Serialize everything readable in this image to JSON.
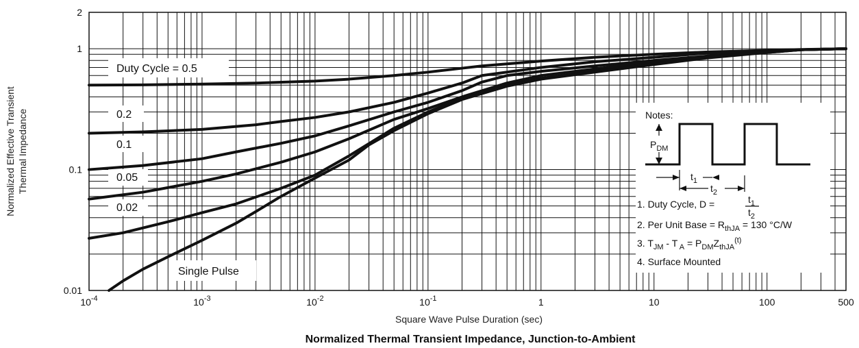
{
  "chart_data": {
    "type": "line",
    "title": "Normalized Thermal Transient Impedance, Junction-to-Ambient",
    "xlabel": "Square Wave Pulse Duration (sec)",
    "ylabel_line1": "Normalized Effective Transient",
    "ylabel_line2": "Thermal Impedance",
    "x_scale": "log",
    "y_scale": "log",
    "xlim": [
      0.0001,
      500
    ],
    "ylim": [
      0.01,
      2
    ],
    "grid": true,
    "x_tick_values": [
      0.0001,
      0.001,
      0.01,
      0.1,
      1,
      10,
      100,
      500
    ],
    "x_tick_labels": [
      {
        "base": "10",
        "exp": "-4"
      },
      {
        "base": "10",
        "exp": "-3"
      },
      {
        "base": "10",
        "exp": "-2"
      },
      {
        "base": "10",
        "exp": "-1"
      },
      {
        "base": "1",
        "exp": ""
      },
      {
        "base": "10",
        "exp": ""
      },
      {
        "base": "100",
        "exp": ""
      },
      {
        "base": "500",
        "exp": ""
      }
    ],
    "y_tick_values": [
      0.01,
      0.1,
      1,
      2
    ],
    "y_tick_labels": [
      "0.01",
      "0.1",
      "1",
      "2"
    ],
    "series": [
      {
        "name": "Duty Cycle = 0.5",
        "x": [
          0.0001,
          0.0003,
          0.001,
          0.003,
          0.01,
          0.02,
          0.05,
          0.1,
          0.2,
          0.3,
          1,
          3,
          10,
          30,
          100,
          200,
          500
        ],
        "y": [
          0.5,
          0.502,
          0.51,
          0.52,
          0.54,
          0.56,
          0.6,
          0.64,
          0.69,
          0.72,
          0.79,
          0.85,
          0.9,
          0.94,
          0.97,
          0.985,
          1
        ]
      },
      {
        "name": "0.2",
        "x": [
          0.0001,
          0.0003,
          0.001,
          0.003,
          0.005,
          0.01,
          0.02,
          0.05,
          0.1,
          0.2,
          0.3,
          1,
          3,
          10,
          30,
          100,
          200,
          500
        ],
        "y": [
          0.2,
          0.205,
          0.215,
          0.235,
          0.25,
          0.27,
          0.3,
          0.36,
          0.43,
          0.52,
          0.6,
          0.7,
          0.78,
          0.85,
          0.92,
          0.96,
          0.98,
          1
        ]
      },
      {
        "name": "0.1",
        "x": [
          0.0001,
          0.0003,
          0.001,
          0.002,
          0.005,
          0.01,
          0.02,
          0.05,
          0.1,
          0.2,
          0.3,
          0.5,
          1,
          3,
          10,
          30,
          100,
          200,
          500
        ],
        "y": [
          0.1,
          0.108,
          0.123,
          0.14,
          0.165,
          0.19,
          0.23,
          0.3,
          0.36,
          0.45,
          0.53,
          0.6,
          0.65,
          0.72,
          0.8,
          0.87,
          0.94,
          0.98,
          1
        ]
      },
      {
        "name": "0.05",
        "x": [
          0.0001,
          0.0003,
          0.001,
          0.002,
          0.005,
          0.01,
          0.02,
          0.05,
          0.1,
          0.2,
          0.5,
          1,
          3,
          10,
          30,
          100,
          200,
          500
        ],
        "y": [
          0.057,
          0.065,
          0.08,
          0.092,
          0.115,
          0.14,
          0.18,
          0.26,
          0.32,
          0.4,
          0.52,
          0.6,
          0.68,
          0.78,
          0.86,
          0.94,
          0.98,
          1
        ]
      },
      {
        "name": "0.02",
        "x": [
          0.0001,
          0.0002,
          0.0005,
          0.001,
          0.002,
          0.005,
          0.01,
          0.02,
          0.05,
          0.1,
          0.2,
          0.5,
          1,
          3,
          10,
          30,
          100,
          200,
          500
        ],
        "y": [
          0.027,
          0.03,
          0.037,
          0.044,
          0.052,
          0.07,
          0.09,
          0.13,
          0.22,
          0.3,
          0.39,
          0.5,
          0.57,
          0.65,
          0.75,
          0.85,
          0.93,
          0.98,
          1
        ]
      },
      {
        "name": "Single Pulse",
        "x": [
          0.00015,
          0.0002,
          0.0003,
          0.0005,
          0.001,
          0.002,
          0.003,
          0.005,
          0.01,
          0.02,
          0.03,
          0.05,
          0.1,
          0.2,
          0.5,
          1,
          3,
          10,
          30,
          100,
          200,
          500
        ],
        "y": [
          0.01,
          0.012,
          0.015,
          0.019,
          0.026,
          0.036,
          0.045,
          0.06,
          0.085,
          0.12,
          0.16,
          0.21,
          0.29,
          0.38,
          0.49,
          0.56,
          0.64,
          0.74,
          0.84,
          0.93,
          0.98,
          1
        ]
      }
    ]
  },
  "series_labels": {
    "duty_0_5": "Duty Cycle = 0.5",
    "duty_0_2": "0.2",
    "duty_0_1": "0.1",
    "duty_0_05": "0.05",
    "duty_0_02": "0.02",
    "single_pulse": "Single Pulse"
  },
  "notes": {
    "heading": "Notes:",
    "pdm_main": "P",
    "pdm_sub": "DM",
    "t1_main": "t",
    "t1_sub": "1",
    "t2_main": "t",
    "t2_sub": "2",
    "note1_text": "1. Duty Cycle, D =",
    "note1_num_main": "t",
    "note1_num_sub": "1",
    "note1_den_main": "t",
    "note1_den_sub": "2",
    "note2_prefix": "2. Per Unit Base = R",
    "note2_sub": "thJA",
    "note2_suffix": " = 130 °C/W",
    "note3_a": "3. T",
    "note3_a_sub": "JM",
    "note3_b": " - T",
    "note3_b_sub": " A",
    "note3_c": " = P",
    "note3_c_sub": "DM",
    "note3_d": "Z",
    "note3_d_sub": "thJA",
    "note3_e": "(t)",
    "note4": "4. Surface Mounted"
  }
}
